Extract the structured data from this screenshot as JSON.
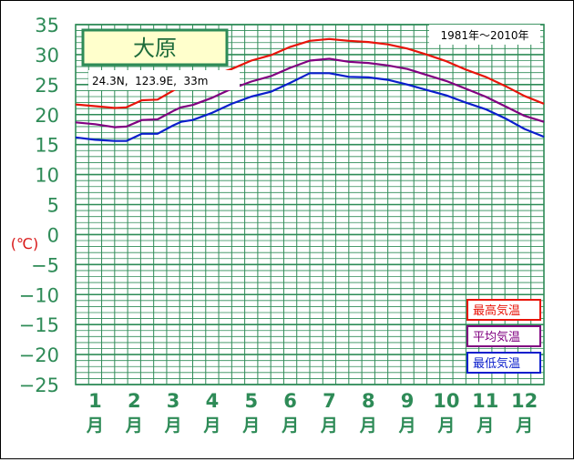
{
  "chart_data": {
    "type": "line",
    "title": "大原",
    "station_info": "24.3N,  123.9E,  33m",
    "period": "1981年～2010年",
    "ylabel": "(℃)",
    "ylim": [
      -25,
      35
    ],
    "y_ticks": [
      35,
      30,
      25,
      20,
      15,
      10,
      5,
      0,
      -5,
      -10,
      -15,
      -20,
      -25
    ],
    "month_numbers": [
      "1",
      "2",
      "3",
      "4",
      "5",
      "6",
      "7",
      "8",
      "9",
      "10",
      "11",
      "12"
    ],
    "month_suffix": "月",
    "x_range": [
      0.5,
      12.5
    ],
    "grid": true,
    "legend_position": "bottom-right",
    "series": [
      {
        "name": "最高気温",
        "color": "#e8140a",
        "x": [
          0.5,
          1.0,
          1.5,
          1.8,
          2.2,
          2.6,
          3.0,
          3.2,
          3.5,
          4.0,
          4.5,
          5.0,
          5.5,
          6.0,
          6.5,
          7.0,
          7.5,
          8.0,
          8.5,
          9.0,
          9.5,
          10.0,
          10.5,
          11.0,
          11.5,
          12.0,
          12.5
        ],
        "values": [
          21.7,
          21.4,
          21.1,
          21.2,
          22.4,
          22.5,
          24.0,
          24.8,
          25.2,
          26.5,
          27.6,
          29.0,
          29.9,
          31.3,
          32.3,
          32.6,
          32.3,
          32.1,
          31.7,
          31.0,
          30.0,
          28.9,
          27.5,
          26.3,
          24.8,
          23.1,
          21.8
        ]
      },
      {
        "name": "平均気温",
        "color": "#800080",
        "x": [
          0.5,
          1.0,
          1.5,
          1.8,
          2.2,
          2.6,
          3.0,
          3.2,
          3.5,
          4.0,
          4.5,
          5.0,
          5.5,
          6.0,
          6.5,
          7.0,
          7.5,
          8.0,
          8.5,
          9.0,
          9.5,
          10.0,
          10.5,
          11.0,
          11.5,
          12.0,
          12.5
        ],
        "values": [
          18.7,
          18.4,
          17.9,
          18.0,
          19.1,
          19.2,
          20.6,
          21.2,
          21.6,
          22.8,
          24.3,
          25.5,
          26.4,
          27.8,
          29.0,
          29.3,
          28.8,
          28.6,
          28.2,
          27.6,
          26.6,
          25.6,
          24.3,
          23.0,
          21.4,
          19.8,
          18.8
        ]
      },
      {
        "name": "最低気温",
        "color": "#0a1ecc",
        "x": [
          0.5,
          1.0,
          1.5,
          1.8,
          2.2,
          2.6,
          3.0,
          3.2,
          3.5,
          4.0,
          4.5,
          5.0,
          5.5,
          6.0,
          6.5,
          7.0,
          7.5,
          8.0,
          8.5,
          9.0,
          9.5,
          10.0,
          10.5,
          11.0,
          11.5,
          12.0,
          12.5
        ],
        "values": [
          16.2,
          15.8,
          15.6,
          15.6,
          16.8,
          16.8,
          18.2,
          18.8,
          19.1,
          20.3,
          21.8,
          23.0,
          23.8,
          25.3,
          26.9,
          26.9,
          26.3,
          26.2,
          25.8,
          25.0,
          24.1,
          23.2,
          22.0,
          20.9,
          19.4,
          17.6,
          16.3
        ]
      }
    ]
  }
}
